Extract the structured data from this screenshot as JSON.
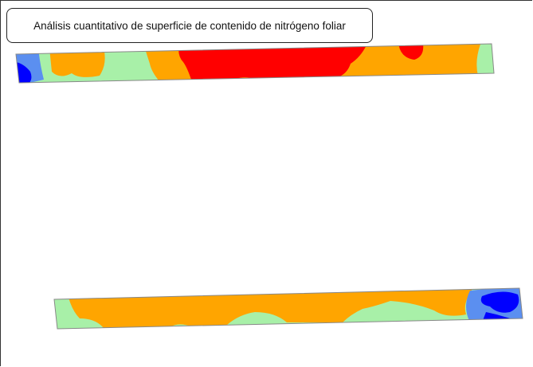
{
  "header": {
    "title": "Análisis cuantitativo de superficie de contenido de nitrógeno foliar"
  }
}
